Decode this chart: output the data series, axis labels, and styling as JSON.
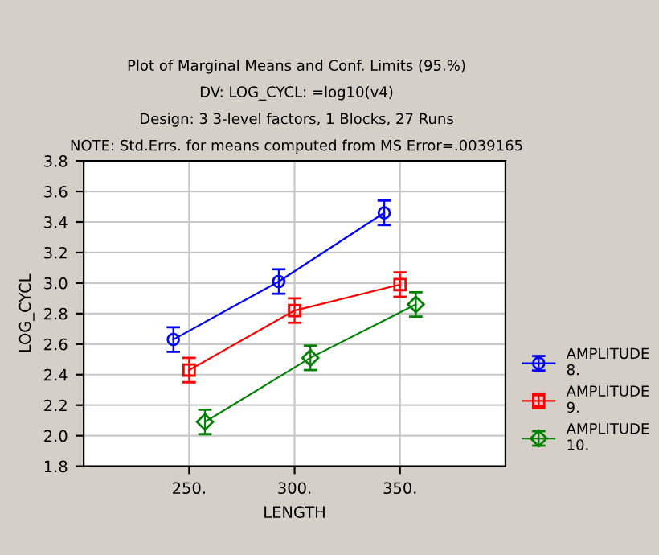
{
  "chart_data": {
    "type": "line",
    "title": "Plot of Marginal Means and Conf. Limits (95.%)",
    "subtitle": "DV: LOG_CYCL: =log10(v4)",
    "annotations": [
      "Design: 3 3-level factors, 1 Blocks, 27 Runs",
      "NOTE: Std.Errs. for means computed from MS Error=.0039165"
    ],
    "xlabel": "LENGTH",
    "ylabel": "LOG_CYCL",
    "categories": [
      "250.",
      "300.",
      "350."
    ],
    "series": [
      {
        "name": "AMPLITUDE 8.",
        "color": "#0000ff",
        "marker": "circle",
        "values": [
          2.63,
          3.01,
          3.46
        ],
        "errors": [
          0.08,
          0.08,
          0.08
        ]
      },
      {
        "name": "AMPLITUDE 9.",
        "color": "#ff0000",
        "marker": "square",
        "values": [
          2.43,
          2.82,
          2.99
        ],
        "errors": [
          0.08,
          0.08,
          0.08
        ]
      },
      {
        "name": "AMPLITUDE 10.",
        "color": "#008000",
        "marker": "diamond",
        "values": [
          2.09,
          2.51,
          2.86
        ],
        "errors": [
          0.08,
          0.08,
          0.08
        ]
      }
    ],
    "ylim": [
      1.8,
      3.8
    ],
    "yticks": [
      1.8,
      {
        "value": 2.0,
        "label": "2.0"
      },
      2.2,
      2.4,
      2.6,
      2.8,
      {
        "value": 3.0,
        "label": "3.0"
      },
      3.2,
      3.4,
      3.6,
      3.8
    ],
    "grid": true,
    "legend": "right",
    "line_style": "solid"
  }
}
